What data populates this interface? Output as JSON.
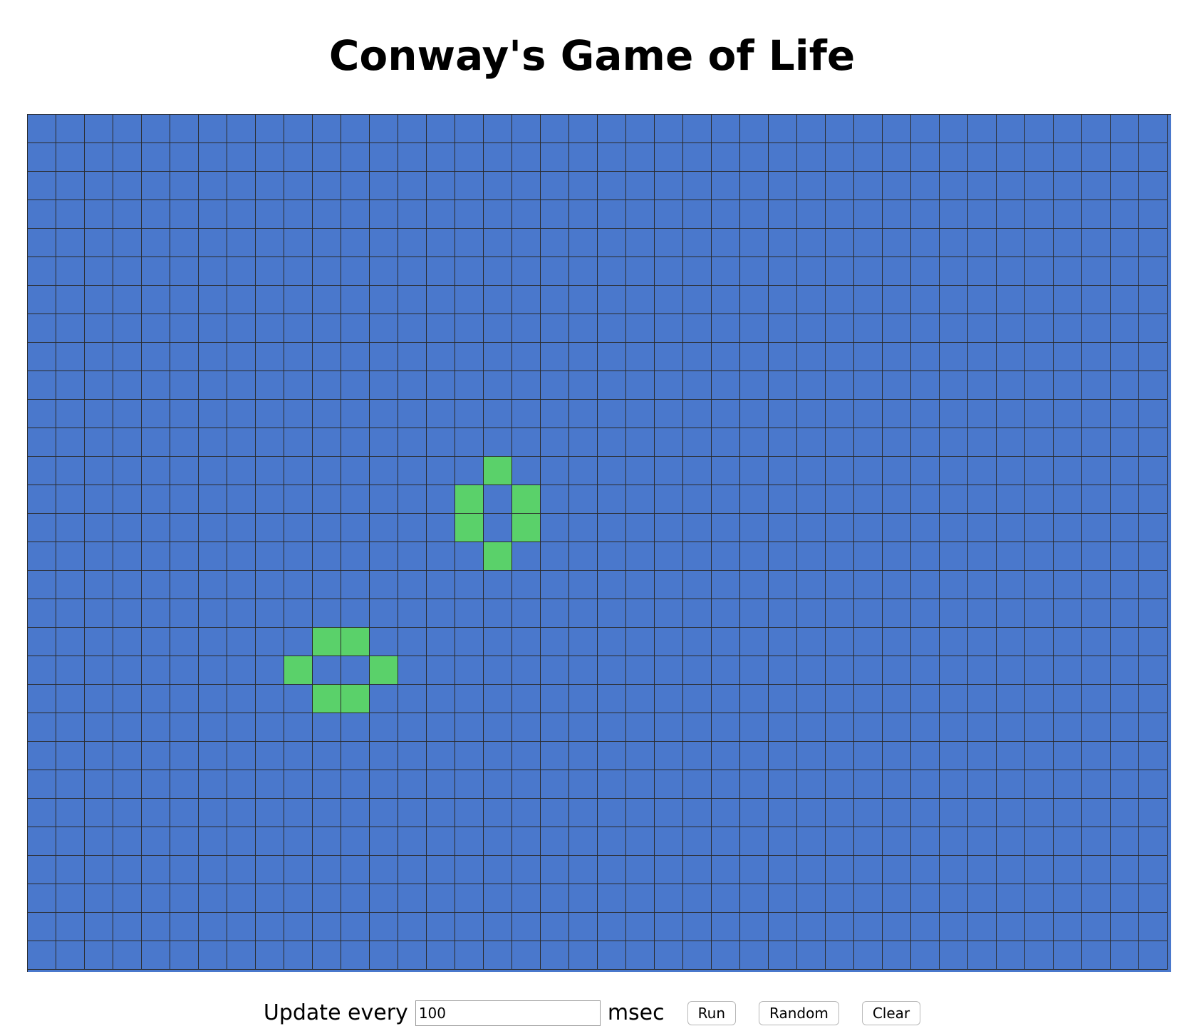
{
  "page": {
    "title": "Conway's Game of Life"
  },
  "board": {
    "rows": 30,
    "cols": 40,
    "alive_color": "#5ad16a",
    "dead_color": "#4a78cc",
    "grid_line_color": "#2a2a2a",
    "alive_cells": [
      [
        12,
        16
      ],
      [
        13,
        15
      ],
      [
        13,
        17
      ],
      [
        14,
        15
      ],
      [
        14,
        17
      ],
      [
        15,
        16
      ],
      [
        18,
        10
      ],
      [
        18,
        11
      ],
      [
        19,
        9
      ],
      [
        19,
        12
      ],
      [
        20,
        10
      ],
      [
        20,
        11
      ]
    ]
  },
  "controls": {
    "update_label": "Update every",
    "interval_value": "100",
    "unit_label": "msec",
    "run_label": "Run",
    "random_label": "Random",
    "clear_label": "Clear"
  }
}
